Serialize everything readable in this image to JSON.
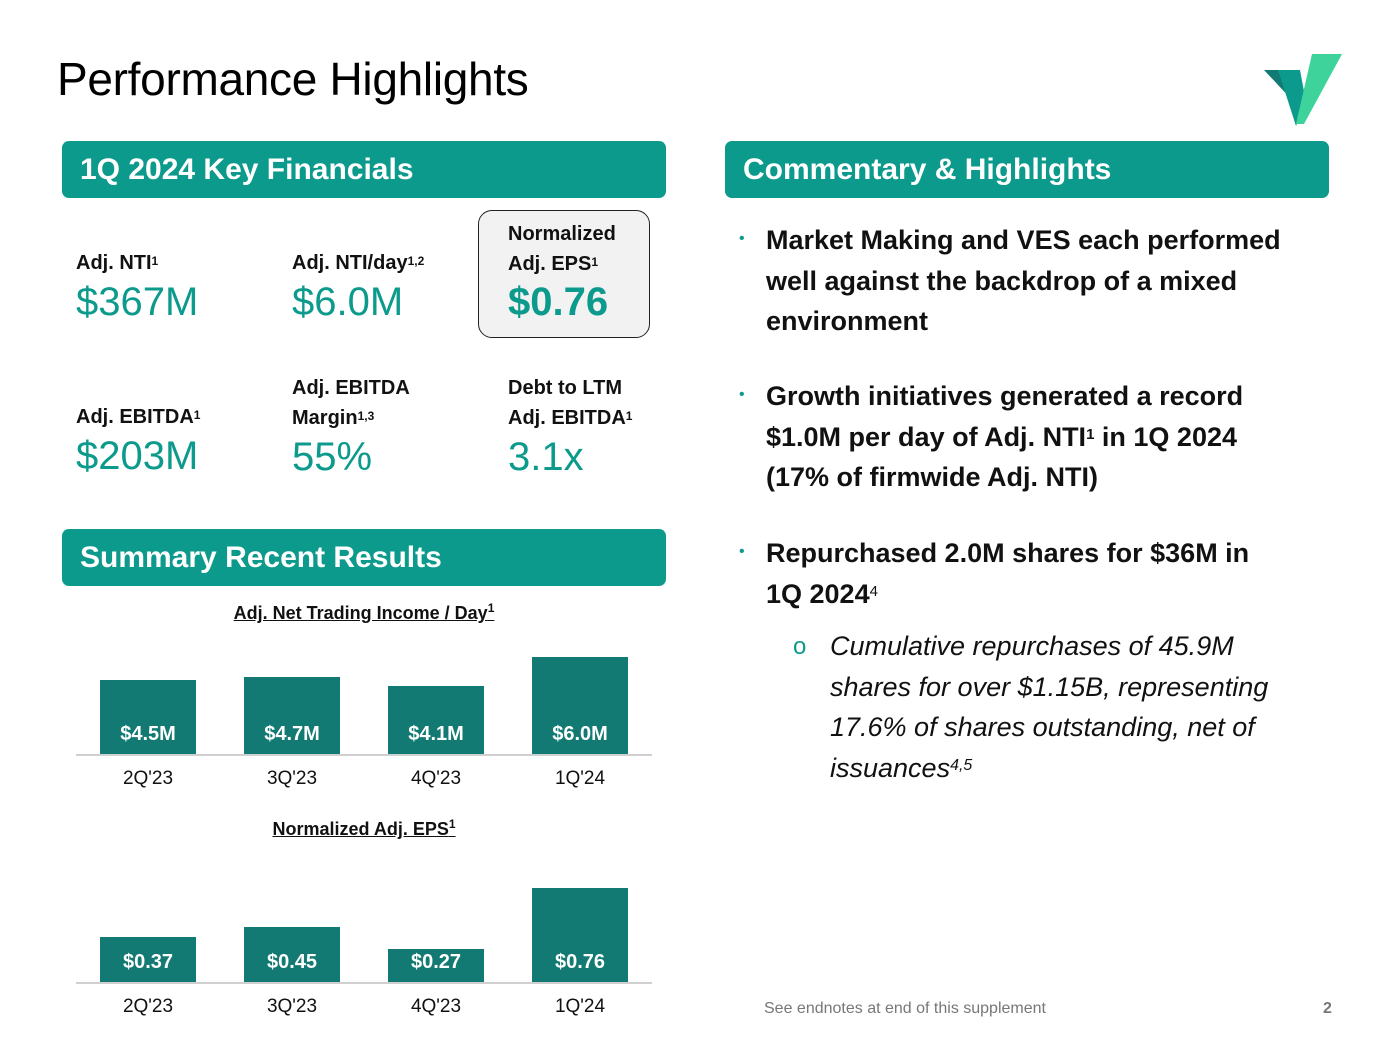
{
  "page": {
    "title": "Performance Highlights",
    "page_number": "2",
    "footer_note": "See endnotes at end of this supplement"
  },
  "colors": {
    "accent": "#0c9a8c",
    "bar": "#127a72",
    "eps_box_bg": "#f2f2f2"
  },
  "key_financials": {
    "heading": "1Q 2024 Key Financials",
    "metrics": [
      {
        "label": "Adj. NTI",
        "sup": "1",
        "value": "$367M"
      },
      {
        "label": "Adj. NTI/day",
        "sup": "1,2",
        "value": "$6.0M"
      },
      {
        "label_line1": "Normalized",
        "label_line2": "Adj. EPS",
        "sup": "1",
        "value": "$0.76"
      },
      {
        "label": "Adj. EBITDA",
        "sup": "1",
        "value": "$203M"
      },
      {
        "label_line1": "Adj. EBITDA",
        "label_line2": "Margin",
        "sup": "1,3",
        "value": "55%"
      },
      {
        "label_line1": "Debt to LTM",
        "label_line2": "Adj. EBITDA",
        "sup": "1",
        "value": "3.1x"
      }
    ]
  },
  "summary": {
    "heading": "Summary Recent Results"
  },
  "commentary": {
    "heading": "Commentary & Highlights",
    "bullet1": {
      "line1": "Market Making and VES each performed",
      "line2": "well against the backdrop of a mixed",
      "line3": "environment"
    },
    "bullet2": {
      "line1": "Growth initiatives generated a record",
      "line2a": "$1.0M per day of Adj. NTI",
      "line2sup": "1",
      "line2b": " in 1Q 2024",
      "line3": "(17% of firmwide Adj. NTI)"
    },
    "bullet3": {
      "line1": "Repurchased 2.0M shares for $36M in",
      "line2": "1Q 2024",
      "line2sup": "4"
    },
    "sub_bullet": {
      "line1": "Cumulative repurchases of 45.9M",
      "line2": "shares for over $1.15B, representing",
      "line3": "17.6% of shares outstanding, net of",
      "line4": "issuances",
      "line4sup": "4,5"
    }
  },
  "chart_data": [
    {
      "type": "bar",
      "title": "Adj. Net Trading Income / Day",
      "title_sup": "1",
      "categories": [
        "2Q'23",
        "3Q'23",
        "4Q'23",
        "1Q'24"
      ],
      "values": [
        4.5,
        4.7,
        4.1,
        6.0
      ],
      "data_labels": [
        "$4.5M",
        "$4.7M",
        "$4.1M",
        "$6.0M"
      ],
      "ylim": [
        0,
        6.0
      ],
      "unit": "$M"
    },
    {
      "type": "bar",
      "title": "Normalized Adj. EPS",
      "title_sup": "1",
      "categories": [
        "2Q'23",
        "3Q'23",
        "4Q'23",
        "1Q'24"
      ],
      "values": [
        0.37,
        0.45,
        0.27,
        0.76
      ],
      "data_labels": [
        "$0.37",
        "$0.45",
        "$0.27",
        "$0.76"
      ],
      "ylim": [
        0,
        0.76
      ],
      "unit": "$"
    }
  ]
}
